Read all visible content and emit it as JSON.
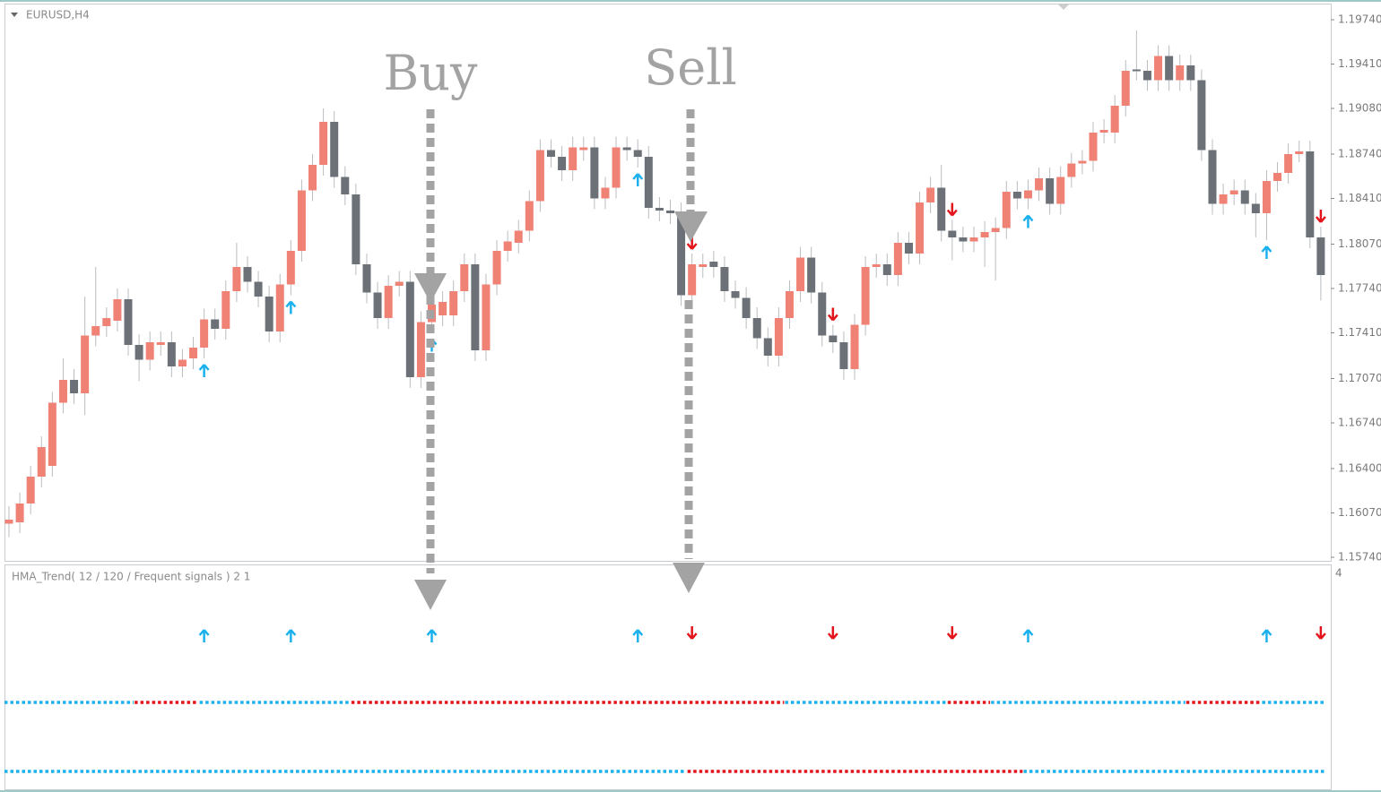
{
  "chart_data": {
    "type": "candlestick",
    "title": "EURUSD,H4",
    "indicator_title": "HMA_Trend( 12 / 120 / Frequent signals ) 2 1",
    "indicator_axis_label": "4",
    "annotations": [
      "Buy",
      "Sell"
    ],
    "bull_color": "#ef8274",
    "bear_color": "#6b7177",
    "up_color": "#1bb1ee",
    "down_color": "#e3141b",
    "ylim": [
      1.1574,
      1.1974
    ],
    "yticks": [
      {
        "value": 1.1974,
        "label": "1.19740"
      },
      {
        "value": 1.1941,
        "label": "1.19410"
      },
      {
        "value": 1.1908,
        "label": "1.19080"
      },
      {
        "value": 1.1874,
        "label": "1.18740"
      },
      {
        "value": 1.1841,
        "label": "1.18410"
      },
      {
        "value": 1.1807,
        "label": "1.18070"
      },
      {
        "value": 1.1774,
        "label": "1.17740"
      },
      {
        "value": 1.1741,
        "label": "1.17410"
      },
      {
        "value": 1.1707,
        "label": "1.17070"
      },
      {
        "value": 1.1674,
        "label": "1.16740"
      },
      {
        "value": 1.164,
        "label": "1.16400"
      },
      {
        "value": 1.1607,
        "label": "1.16070"
      },
      {
        "value": 1.1574,
        "label": "1.15740"
      }
    ],
    "open": [
      1.1599,
      1.16,
      1.1614,
      1.1634,
      1.1642,
      1.1689,
      1.1706,
      1.1696,
      1.1739,
      1.1746,
      1.175,
      1.1766,
      1.1732,
      1.1721,
      1.1732,
      1.1734,
      1.1716,
      1.1722,
      1.173,
      1.1751,
      1.1744,
      1.1772,
      1.179,
      1.1779,
      1.1768,
      1.1742,
      1.1777,
      1.1802,
      1.1847,
      1.1866,
      1.1898,
      1.1857,
      1.1844,
      1.1792,
      1.1771,
      1.1752,
      1.1776,
      1.1779,
      1.1708,
      1.1749,
      1.1754,
      1.1754,
      1.1772,
      1.1792,
      1.1728,
      1.1777,
      1.1802,
      1.1808,
      1.1817,
      1.1839,
      1.1877,
      1.1872,
      1.1862,
      1.1877,
      1.1879,
      1.1841,
      1.1849,
      1.1879,
      1.1877,
      1.1872,
      1.1834,
      1.1832,
      1.183,
      1.1769,
      1.179,
      1.1794,
      1.179,
      1.1772,
      1.1767,
      1.1752,
      1.1737,
      1.1724,
      1.1752,
      1.1772,
      1.1797,
      1.1771,
      1.1739,
      1.1734,
      1.1714,
      1.1747,
      1.179,
      1.1792,
      1.1784,
      1.1808,
      1.18,
      1.1838,
      1.1849,
      1.1817,
      1.1812,
      1.1809,
      1.1812,
      1.1816,
      1.1819,
      1.1846,
      1.1841,
      1.1847,
      1.1856,
      1.1837,
      1.1857,
      1.1867,
      1.1869,
      1.189,
      1.189,
      1.191,
      1.1937,
      1.1936,
      1.1929,
      1.1947,
      1.1929,
      1.194,
      1.1929,
      1.1877,
      1.1837,
      1.1844,
      1.1847,
      1.1837,
      1.183,
      1.1854,
      1.186,
      1.1874,
      1.1876,
      1.1812
    ],
    "close": [
      1.1602,
      1.1614,
      1.1634,
      1.1656,
      1.1689,
      1.1706,
      1.1696,
      1.1739,
      1.1746,
      1.1752,
      1.1766,
      1.1732,
      1.1721,
      1.1734,
      1.1734,
      1.1716,
      1.1721,
      1.173,
      1.1751,
      1.1744,
      1.1772,
      1.179,
      1.1779,
      1.1768,
      1.1742,
      1.1777,
      1.1802,
      1.1847,
      1.1866,
      1.1898,
      1.1857,
      1.1844,
      1.1792,
      1.1771,
      1.1752,
      1.1776,
      1.1779,
      1.1708,
      1.1749,
      1.1762,
      1.1764,
      1.1772,
      1.1792,
      1.1728,
      1.1777,
      1.1802,
      1.1809,
      1.1817,
      1.1839,
      1.1877,
      1.1872,
      1.1862,
      1.1879,
      1.1879,
      1.1841,
      1.1849,
      1.1879,
      1.1877,
      1.1872,
      1.1834,
      1.1832,
      1.183,
      1.1769,
      1.1792,
      1.1792,
      1.179,
      1.1772,
      1.1767,
      1.1752,
      1.1737,
      1.1724,
      1.1752,
      1.1772,
      1.1797,
      1.1771,
      1.1739,
      1.1734,
      1.1714,
      1.1747,
      1.179,
      1.1792,
      1.1784,
      1.1808,
      1.18,
      1.1838,
      1.1849,
      1.1817,
      1.1812,
      1.1809,
      1.1812,
      1.1816,
      1.1819,
      1.1846,
      1.1841,
      1.1847,
      1.1856,
      1.1837,
      1.1857,
      1.1867,
      1.1869,
      1.189,
      1.1892,
      1.191,
      1.1936,
      1.1936,
      1.1929,
      1.1947,
      1.1929,
      1.194,
      1.1929,
      1.1877,
      1.1837,
      1.1844,
      1.1847,
      1.1837,
      1.183,
      1.1854,
      1.186,
      1.1874,
      1.1876,
      1.1812,
      1.1784
    ],
    "high": [
      1.1612,
      1.1622,
      1.1642,
      1.1664,
      1.1697,
      1.1722,
      1.1714,
      1.1768,
      1.179,
      1.176,
      1.1774,
      1.1774,
      1.174,
      1.1742,
      1.1742,
      1.1742,
      1.1729,
      1.1738,
      1.1759,
      1.1759,
      1.178,
      1.1808,
      1.1798,
      1.1787,
      1.1776,
      1.1785,
      1.181,
      1.1855,
      1.1874,
      1.1908,
      1.1906,
      1.1865,
      1.1852,
      1.18,
      1.1779,
      1.1784,
      1.1787,
      1.1787,
      1.1757,
      1.177,
      1.1772,
      1.178,
      1.18,
      1.18,
      1.1785,
      1.181,
      1.1817,
      1.1825,
      1.1847,
      1.1885,
      1.1885,
      1.188,
      1.1887,
      1.1887,
      1.1887,
      1.1857,
      1.1887,
      1.1887,
      1.1885,
      1.188,
      1.1842,
      1.184,
      1.1838,
      1.18,
      1.18,
      1.1802,
      1.1798,
      1.178,
      1.1775,
      1.176,
      1.1745,
      1.176,
      1.178,
      1.1805,
      1.1805,
      1.1779,
      1.1747,
      1.1742,
      1.1755,
      1.1798,
      1.18,
      1.18,
      1.1816,
      1.1816,
      1.1846,
      1.1857,
      1.1866,
      1.1825,
      1.182,
      1.182,
      1.1824,
      1.1827,
      1.1854,
      1.1854,
      1.1855,
      1.1864,
      1.1864,
      1.1865,
      1.1875,
      1.1877,
      1.1898,
      1.19,
      1.1918,
      1.1944,
      1.1966,
      1.1944,
      1.1955,
      1.1955,
      1.1948,
      1.1948,
      1.1937,
      1.1885,
      1.1852,
      1.1855,
      1.1855,
      1.1845,
      1.1862,
      1.1868,
      1.1882,
      1.1884,
      1.1884,
      1.182
    ],
    "low": [
      1.1589,
      1.1592,
      1.1606,
      1.1626,
      1.1634,
      1.1681,
      1.1688,
      1.168,
      1.1731,
      1.1738,
      1.1742,
      1.1724,
      1.1705,
      1.1713,
      1.1724,
      1.1708,
      1.1708,
      1.1714,
      1.1722,
      1.1736,
      1.1736,
      1.1764,
      1.1771,
      1.176,
      1.1734,
      1.1734,
      1.1769,
      1.1794,
      1.1839,
      1.1858,
      1.1849,
      1.1836,
      1.1784,
      1.1763,
      1.1744,
      1.1744,
      1.1768,
      1.17,
      1.17,
      1.1741,
      1.1746,
      1.1746,
      1.1764,
      1.172,
      1.172,
      1.1769,
      1.1794,
      1.18,
      1.1809,
      1.1831,
      1.1864,
      1.1854,
      1.1854,
      1.1869,
      1.1833,
      1.1833,
      1.1841,
      1.1869,
      1.1864,
      1.1826,
      1.1824,
      1.1822,
      1.1761,
      1.1761,
      1.1782,
      1.1782,
      1.1764,
      1.1759,
      1.1744,
      1.1729,
      1.1716,
      1.1716,
      1.1744,
      1.1764,
      1.1763,
      1.1731,
      1.1726,
      1.1706,
      1.1706,
      1.1739,
      1.1782,
      1.1776,
      1.1776,
      1.1792,
      1.1792,
      1.183,
      1.1809,
      1.1795,
      1.1801,
      1.1801,
      1.179,
      1.178,
      1.1811,
      1.1833,
      1.1833,
      1.1839,
      1.1829,
      1.1829,
      1.1849,
      1.1859,
      1.1861,
      1.1882,
      1.1882,
      1.1902,
      1.1929,
      1.1921,
      1.1921,
      1.1921,
      1.1921,
      1.1921,
      1.1869,
      1.1829,
      1.1829,
      1.1836,
      1.1829,
      1.1812,
      1.181,
      1.1846,
      1.1852,
      1.1868,
      1.1804,
      1.1765
    ],
    "up_signals": [
      18,
      26,
      39,
      58,
      94,
      116
    ],
    "down_signals": [
      63,
      76,
      87,
      121
    ],
    "trend_lines": [
      {
        "segments": [
          {
            "start": 0,
            "end": 11,
            "trend": "up"
          },
          {
            "start": 12,
            "end": 17,
            "trend": "down"
          },
          {
            "start": 18,
            "end": 31,
            "trend": "up"
          },
          {
            "start": 32,
            "end": 71,
            "trend": "down"
          },
          {
            "start": 72,
            "end": 86,
            "trend": "up"
          },
          {
            "start": 87,
            "end": 90,
            "trend": "down"
          },
          {
            "start": 91,
            "end": 108,
            "trend": "up"
          },
          {
            "start": 109,
            "end": 115,
            "trend": "down"
          },
          {
            "start": 116,
            "end": 121,
            "trend": "up"
          }
        ]
      },
      {
        "segments": [
          {
            "start": 0,
            "end": 62,
            "trend": "up"
          },
          {
            "start": 63,
            "end": 93,
            "trend": "down"
          },
          {
            "start": 94,
            "end": 121,
            "trend": "up"
          }
        ]
      }
    ]
  }
}
